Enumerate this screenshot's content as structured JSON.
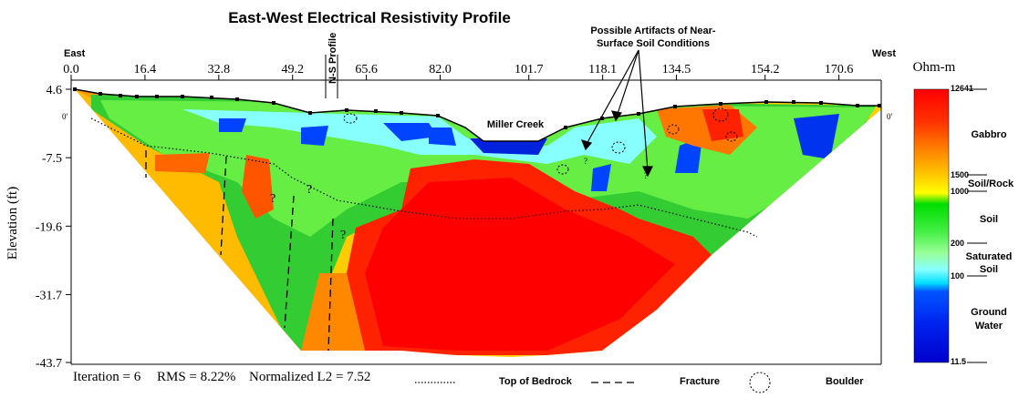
{
  "chart_data": {
    "type": "heatmap",
    "title": "East-West Electrical Resistivity Profile",
    "ylabel": "Elevation (ft)",
    "x_end_left": "East",
    "x_end_right": "West",
    "xticks": [
      "0.0",
      "16.4",
      "32.8",
      "49.2",
      "65.6",
      "82.0",
      "101.7",
      "118.1",
      "134.5",
      "154.2",
      "170.6"
    ],
    "xlim": [
      0,
      180
    ],
    "yticks": [
      "4.6",
      "-7.5",
      "-19.6",
      "-31.7",
      "-43.7"
    ],
    "ylim": [
      -43.7,
      4.6
    ],
    "surface_marker": "0'",
    "profile_marker": "N-S Profile",
    "creek_label": "Miller Creek",
    "artifact_annotation": [
      "Possible Artifacts of Near-",
      "Surface Soil Conditions"
    ],
    "question_mark": "?",
    "colorbar": {
      "title": "Ohm-m",
      "max": "12641",
      "min": "11.5",
      "ticks": [
        "1500",
        "1000",
        "200",
        "100"
      ],
      "classes": [
        "Gabbro",
        "Soil/Rock",
        "Soil",
        "Saturated",
        "Soil",
        "Ground",
        "Water"
      ],
      "colors": [
        "#ff0000",
        "#ff2a00",
        "#ff5500",
        "#ff8000",
        "#ffaa00",
        "#ffd400",
        "#ffff00",
        "#00dd00",
        "#33ee33",
        "#88ff88",
        "#88ffff",
        "#00ddff",
        "#0055ff",
        "#0022ee",
        "#0000cc"
      ]
    },
    "footer": {
      "iteration": "Iteration = 6",
      "rms": "RMS = 8.22%",
      "l2": "Normalized L2 = 7.52",
      "legend": [
        {
          "label": "Top of Bedrock",
          "symbol": "dotted-line"
        },
        {
          "label": "Fracture",
          "symbol": "dashed-line"
        },
        {
          "label": "Boulder",
          "symbol": "dashed-circle"
        }
      ]
    }
  }
}
